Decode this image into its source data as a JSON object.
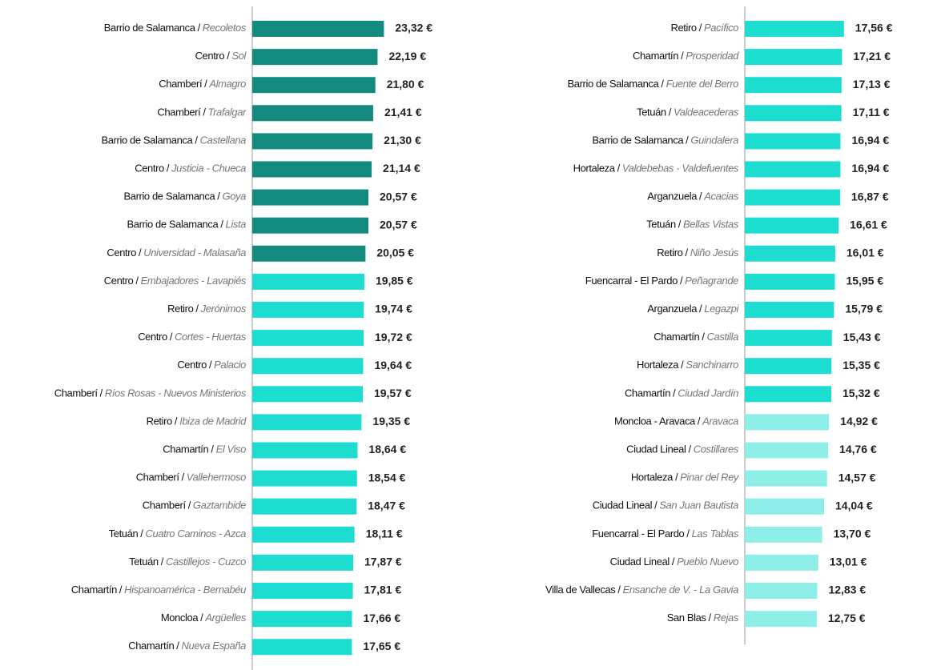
{
  "chart_data": [
    {
      "type": "bar",
      "orientation": "horizontal",
      "separator": "/",
      "districts": [
        "Barrio de Salamanca",
        "Centro",
        "Chamberí",
        "Chamberí",
        "Barrio de Salamanca",
        "Centro",
        "Barrio de Salamanca",
        "Barrio de Salamanca",
        "Centro",
        "Centro",
        "Retiro",
        "Centro",
        "Centro",
        "Chamberí",
        "Retiro",
        "Chamartín",
        "Chamberí",
        "Chamberí",
        "Tetuán",
        "Tetuán",
        "Chamartín",
        "Moncloa",
        "Chamartín"
      ],
      "neighborhoods": [
        "Recoletos",
        "Sol",
        "Almagro",
        "Trafalgar",
        "Castellana",
        "Justicia - Chueca",
        "Goya",
        "Lista",
        "Universidad - Malasaña",
        "Embajadores - Lavapiés",
        "Jerónimos",
        "Cortes - Huertas",
        "Palacio",
        "Ríos Rosas - Nuevos Ministerios",
        "Ibiza de Madrid",
        "El Viso",
        "Vallehermoso",
        "Gaztambide",
        "Cuatro Caminos - Azca",
        "Castillejos - Cuzco",
        "Hispanoamérica - Bernabéu",
        "Argüelles",
        "Nueva España"
      ],
      "values": [
        23.32,
        22.19,
        21.8,
        21.41,
        21.3,
        21.14,
        20.57,
        20.57,
        20.05,
        19.85,
        19.74,
        19.72,
        19.64,
        19.57,
        19.35,
        18.64,
        18.54,
        18.47,
        18.11,
        17.87,
        17.81,
        17.66,
        17.65
      ],
      "value_labels": [
        "23,32 €",
        "22,19 €",
        "21,80 €",
        "21,41 €",
        "21,30 €",
        "21,14 €",
        "20,57 €",
        "20,57 €",
        "20,05 €",
        "19,85 €",
        "19,74 €",
        "19,72 €",
        "19,64 €",
        "19,57 €",
        "19,35 €",
        "18,64 €",
        "18,54 €",
        "18,47 €",
        "18,11 €",
        "17,87 €",
        "17,81 €",
        "17,66 €",
        "17,65 €"
      ],
      "colors": [
        "#138a7e",
        "#138a7e",
        "#138a7e",
        "#138a7e",
        "#138a7e",
        "#138a7e",
        "#138a7e",
        "#138a7e",
        "#138a7e",
        "#1ddcd0",
        "#1ddcd0",
        "#1ddcd0",
        "#1ddcd0",
        "#1ddcd0",
        "#1ddcd0",
        "#1ddcd0",
        "#1ddcd0",
        "#1ddcd0",
        "#1ddcd0",
        "#1ddcd0",
        "#1ddcd0",
        "#1ddcd0",
        "#1ddcd0"
      ],
      "xlim": [
        0,
        30
      ]
    },
    {
      "type": "bar",
      "orientation": "horizontal",
      "separator": "/",
      "districts": [
        "Retiro",
        "Chamartín",
        "Barrio de Salamanca",
        "Tetuán",
        "Barrio de Salamanca",
        "Hortaleza",
        "Arganzuela",
        "Tetuán",
        "Retiro",
        "Fuencarral - El Pardo",
        "Arganzuela",
        "Chamartín",
        "Hortaleza",
        "Chamartín",
        "Moncloa - Aravaca",
        "Ciudad Lineal",
        "Hortaleza",
        "Ciudad Lineal",
        "Fuencarral - El Pardo",
        "Ciudad Lineal",
        "Villa de Vallecas",
        "San Blas"
      ],
      "neighborhoods": [
        "Pacífico",
        "Prosperidad",
        "Fuente del Berro",
        "Valdeacederas",
        "Guindalera",
        "Valdebebas - Valdefuentes",
        "Acacias",
        "Bellas Vistas",
        "Niño Jesús",
        "Peñagrande",
        "Legazpi",
        "Castilla",
        "Sanchinarro",
        "Ciudad Jardín",
        "Aravaca",
        "Costillares",
        "Pinar del Rey",
        "San Juan Bautista",
        "Las Tablas",
        "Pueblo Nuevo",
        "Ensanche de V. - La Gavia",
        "Rejas"
      ],
      "values": [
        17.56,
        17.21,
        17.13,
        17.11,
        16.94,
        16.94,
        16.87,
        16.61,
        16.01,
        15.95,
        15.79,
        15.43,
        15.35,
        15.32,
        14.92,
        14.76,
        14.57,
        14.04,
        13.7,
        13.01,
        12.83,
        12.75
      ],
      "value_labels": [
        "17,56 €",
        "17,21 €",
        "17,13 €",
        "17,11 €",
        "16,94 €",
        "16,94 €",
        "16,87 €",
        "16,61 €",
        "16,01 €",
        "15,95 €",
        "15,79 €",
        "15,43 €",
        "15,35 €",
        "15,32 €",
        "14,92 €",
        "14,76 €",
        "14,57 €",
        "14,04 €",
        "13,70 €",
        "13,01 €",
        "12,83 €",
        "12,75 €"
      ],
      "colors": [
        "#1ddcd0",
        "#1ddcd0",
        "#1ddcd0",
        "#1ddcd0",
        "#1ddcd0",
        "#1ddcd0",
        "#1ddcd0",
        "#1ddcd0",
        "#1ddcd0",
        "#1ddcd0",
        "#1ddcd0",
        "#1ddcd0",
        "#1ddcd0",
        "#1ddcd0",
        "#8eeee8",
        "#8eeee8",
        "#8eeee8",
        "#8eeee8",
        "#8eeee8",
        "#8eeee8",
        "#8eeee8",
        "#8eeee8"
      ],
      "xlim": [
        0,
        30
      ]
    }
  ]
}
